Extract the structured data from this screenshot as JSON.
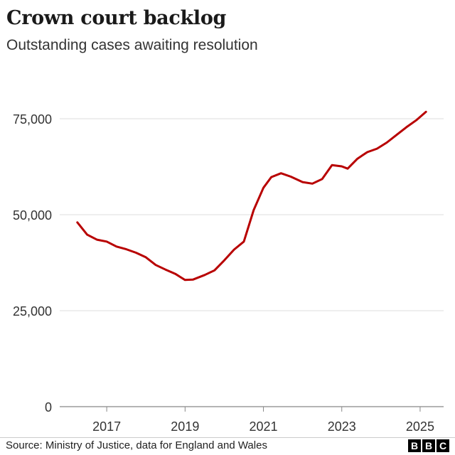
{
  "chart_data": {
    "type": "line",
    "title": "Crown court backlog",
    "subtitle": "Outstanding cases awaiting resolution",
    "xlabel": "",
    "ylabel": "",
    "ylim": [
      0,
      80000
    ],
    "yticks": [
      0,
      25000,
      50000,
      75000
    ],
    "ytick_labels": [
      "0",
      "25,000",
      "50,000",
      "75,000"
    ],
    "xticks": [
      2017,
      2019,
      2021,
      2023,
      2025
    ],
    "xtick_labels": [
      "2017",
      "2019",
      "2021",
      "2023",
      "2025"
    ],
    "xlim": [
      2015.8,
      2025.6
    ],
    "grid": "horizontal",
    "color": "#b80000",
    "series": [
      {
        "x": [
          2016.25,
          2016.5,
          2016.75,
          2017.0,
          2017.25,
          2017.5,
          2017.75,
          2018.0,
          2018.25,
          2018.5,
          2018.75,
          2019.0,
          2019.2,
          2019.5,
          2019.75,
          2020.0,
          2020.25,
          2020.5,
          2020.75,
          2021.0,
          2021.2,
          2021.45,
          2021.7,
          2022.0,
          2022.25,
          2022.5,
          2022.75,
          2023.0,
          2023.15,
          2023.4,
          2023.65,
          2023.9,
          2024.15,
          2024.4,
          2024.65,
          2024.9,
          2025.15
        ],
        "values": [
          48000,
          44800,
          43500,
          43000,
          41700,
          41000,
          40100,
          38900,
          36900,
          35700,
          34600,
          33000,
          33100,
          34300,
          35500,
          38100,
          40900,
          43000,
          51200,
          57000,
          59800,
          60800,
          59900,
          58500,
          58100,
          59300,
          62900,
          62600,
          62000,
          64600,
          66300,
          67200,
          68800,
          70800,
          72800,
          74600,
          76800
        ]
      }
    ]
  },
  "footer": {
    "source": "Source: Ministry of Justice, data for England and Wales",
    "logo": [
      "B",
      "B",
      "C"
    ]
  }
}
